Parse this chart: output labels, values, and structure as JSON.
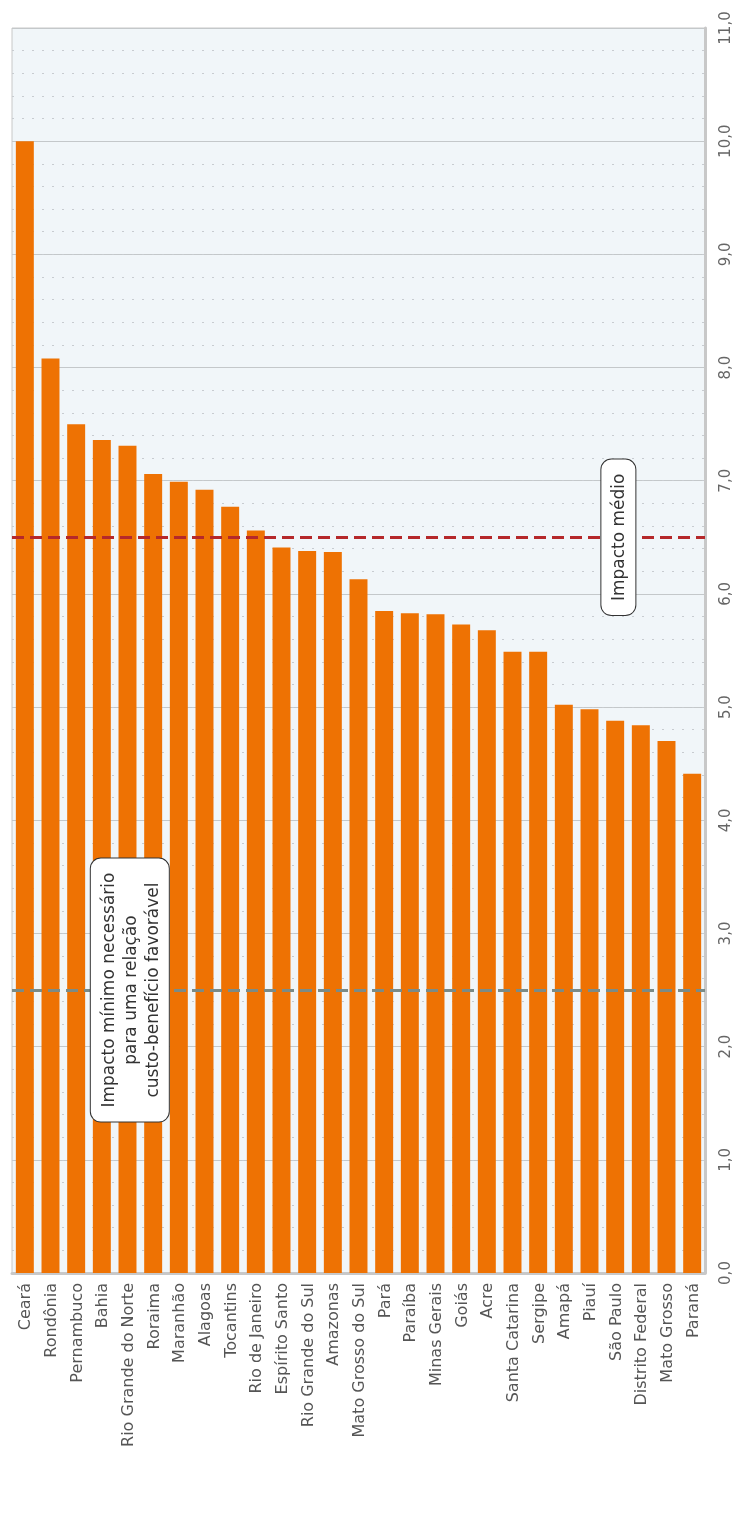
{
  "chart_data": {
    "type": "bar",
    "categories": [
      "Ceará",
      "Rondônia",
      "Pernambuco",
      "Bahia",
      "Rio Grande do Norte",
      "Roraima",
      "Maranhão",
      "Alagoas",
      "Tocantins",
      "Rio de Janeiro",
      "Espírito Santo",
      "Rio Grande do Sul",
      "Amazonas",
      "Mato Grosso do Sul",
      "Pará",
      "Paraíba",
      "Minas Gerais",
      "Goiás",
      "Acre",
      "Santa Catarina",
      "Sergipe",
      "Amapá",
      "Piauí",
      "São Paulo",
      "Distrito Federal",
      "Mato Grosso",
      "Paraná"
    ],
    "values": [
      10.0,
      8.08,
      7.5,
      7.36,
      7.31,
      7.06,
      6.99,
      6.92,
      6.77,
      6.56,
      6.41,
      6.38,
      6.37,
      6.13,
      5.85,
      5.83,
      5.82,
      5.73,
      5.68,
      5.49,
      5.49,
      5.02,
      4.98,
      4.88,
      4.84,
      4.7,
      4.41
    ],
    "color": "#ee7203",
    "ylim": [
      0,
      11
    ],
    "yticks": [
      {
        "value": 0,
        "label": "0,0"
      },
      {
        "value": 1,
        "label": "1,0"
      },
      {
        "value": 2,
        "label": "2,0"
      },
      {
        "value": 3,
        "label": "3,0"
      },
      {
        "value": 4,
        "label": "4,0"
      },
      {
        "value": 5,
        "label": "5,0"
      },
      {
        "value": 6,
        "label": "6,0"
      },
      {
        "value": 7,
        "label": "7,0"
      },
      {
        "value": 8,
        "label": "8,0"
      },
      {
        "value": 9,
        "label": "9,0"
      },
      {
        "value": 10,
        "label": "10,0"
      },
      {
        "value": 11,
        "label": "11,0"
      }
    ],
    "ref_lines": [
      {
        "axis": "y",
        "value": 6.5,
        "label": "Impacto médio",
        "color": "#b5282a",
        "line_style": "dashed"
      },
      {
        "axis": "y",
        "value": 2.5,
        "label": "Impacto mínimo necessário\npara uma relação\ncusto-benefício favorável",
        "color": "#7b8b86",
        "line_style": "dashed"
      }
    ],
    "grid": true
  }
}
